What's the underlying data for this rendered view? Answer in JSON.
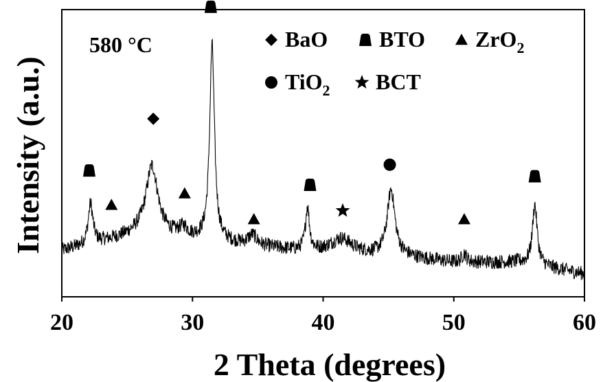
{
  "chart_data": {
    "type": "line",
    "title": "",
    "annotation": "580 °C",
    "xlabel": "2 Theta (degrees)",
    "ylabel": "Intensity (a.u.)",
    "xlim": [
      20,
      60
    ],
    "x_ticks": [
      "20",
      "30",
      "40",
      "50",
      "60"
    ],
    "y_ticks_shown": false,
    "grid": false,
    "legend_position": "top-right",
    "legend": [
      {
        "marker": "diamond",
        "label": "BaO"
      },
      {
        "marker": "bto-marker",
        "label": "BTO"
      },
      {
        "marker": "triangle",
        "label": "ZrO",
        "sub": "2"
      },
      {
        "marker": "circle",
        "label": "TiO",
        "sub": "2"
      },
      {
        "marker": "star",
        "label": "BCT"
      }
    ],
    "series": [
      {
        "style": "noisy-line",
        "color": "#000000",
        "baseline": [
          [
            20,
            0.16
          ],
          [
            22,
            0.18
          ],
          [
            26,
            0.22
          ],
          [
            30,
            0.2
          ],
          [
            34,
            0.18
          ],
          [
            38,
            0.16
          ],
          [
            42,
            0.15
          ],
          [
            46,
            0.14
          ],
          [
            50,
            0.12
          ],
          [
            55,
            0.12
          ],
          [
            60,
            0.08
          ]
        ],
        "peaks": [
          {
            "x": 22.2,
            "height": 0.14,
            "width": 0.22
          },
          {
            "x": 26.9,
            "height": 0.24,
            "width": 0.55
          },
          {
            "x": 29.3,
            "height": 0.03,
            "width": 0.4
          },
          {
            "x": 31.5,
            "height": 0.68,
            "width": 0.22
          },
          {
            "x": 34.6,
            "height": 0.035,
            "width": 0.4
          },
          {
            "x": 38.8,
            "height": 0.15,
            "width": 0.18
          },
          {
            "x": 41.4,
            "height": 0.05,
            "width": 1.0
          },
          {
            "x": 45.2,
            "height": 0.23,
            "width": 0.35
          },
          {
            "x": 50.8,
            "height": 0.03,
            "width": 0.2
          },
          {
            "x": 56.2,
            "height": 0.21,
            "width": 0.22
          }
        ]
      }
    ],
    "phase_markers": [
      {
        "x": 22.1,
        "y": 0.44,
        "phase": "BTO"
      },
      {
        "x": 23.8,
        "y": 0.32,
        "phase": "ZrO2"
      },
      {
        "x": 27.0,
        "y": 0.62,
        "phase": "BaO"
      },
      {
        "x": 29.4,
        "y": 0.36,
        "phase": "ZrO2"
      },
      {
        "x": 31.4,
        "y": 1.01,
        "phase": "BTO"
      },
      {
        "x": 34.7,
        "y": 0.27,
        "phase": "ZrO2"
      },
      {
        "x": 39.0,
        "y": 0.39,
        "phase": "BTO"
      },
      {
        "x": 41.5,
        "y": 0.3,
        "phase": "BCT"
      },
      {
        "x": 45.1,
        "y": 0.46,
        "phase": "TiO2"
      },
      {
        "x": 50.8,
        "y": 0.27,
        "phase": "ZrO2"
      },
      {
        "x": 56.2,
        "y": 0.42,
        "phase": "BTO"
      }
    ]
  }
}
